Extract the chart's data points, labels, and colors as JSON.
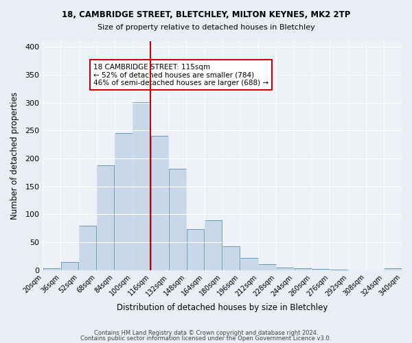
{
  "title1": "18, CAMBRIDGE STREET, BLETCHLEY, MILTON KEYNES, MK2 2TP",
  "title2": "Size of property relative to detached houses in Bletchley",
  "xlabel": "Distribution of detached houses by size in Bletchley",
  "ylabel": "Number of detached properties",
  "bin_labels": [
    "20sqm",
    "36sqm",
    "52sqm",
    "68sqm",
    "84sqm",
    "100sqm",
    "116sqm",
    "132sqm",
    "148sqm",
    "164sqm",
    "180sqm",
    "196sqm",
    "212sqm",
    "228sqm",
    "244sqm",
    "260sqm",
    "276sqm",
    "292sqm",
    "308sqm",
    "324sqm",
    "340sqm"
  ],
  "bar_values": [
    3,
    14,
    80,
    188,
    245,
    301,
    240,
    181,
    73,
    90,
    43,
    22,
    11,
    5,
    4,
    2,
    1,
    0,
    0,
    3
  ],
  "bar_color": "#c8d8e8",
  "bar_edge_color": "#6699bb",
  "vline_x": 115,
  "vline_color": "#cc0000",
  "annotation_title": "18 CAMBRIDGE STREET: 115sqm",
  "annotation_line2": "← 52% of detached houses are smaller (784)",
  "annotation_line3": "46% of semi-detached houses are larger (688) →",
  "annotation_box_color": "#ffffff",
  "annotation_box_edge": "#cc0000",
  "ylim": [
    0,
    410
  ],
  "yticks": [
    0,
    50,
    100,
    150,
    200,
    250,
    300,
    350,
    400
  ],
  "footer1": "Contains HM Land Registry data © Crown copyright and database right 2024.",
  "footer2": "Contains public sector information licensed under the Open Government Licence v3.0.",
  "bg_color": "#e8eef4",
  "plot_bg_color": "#eef2f7"
}
